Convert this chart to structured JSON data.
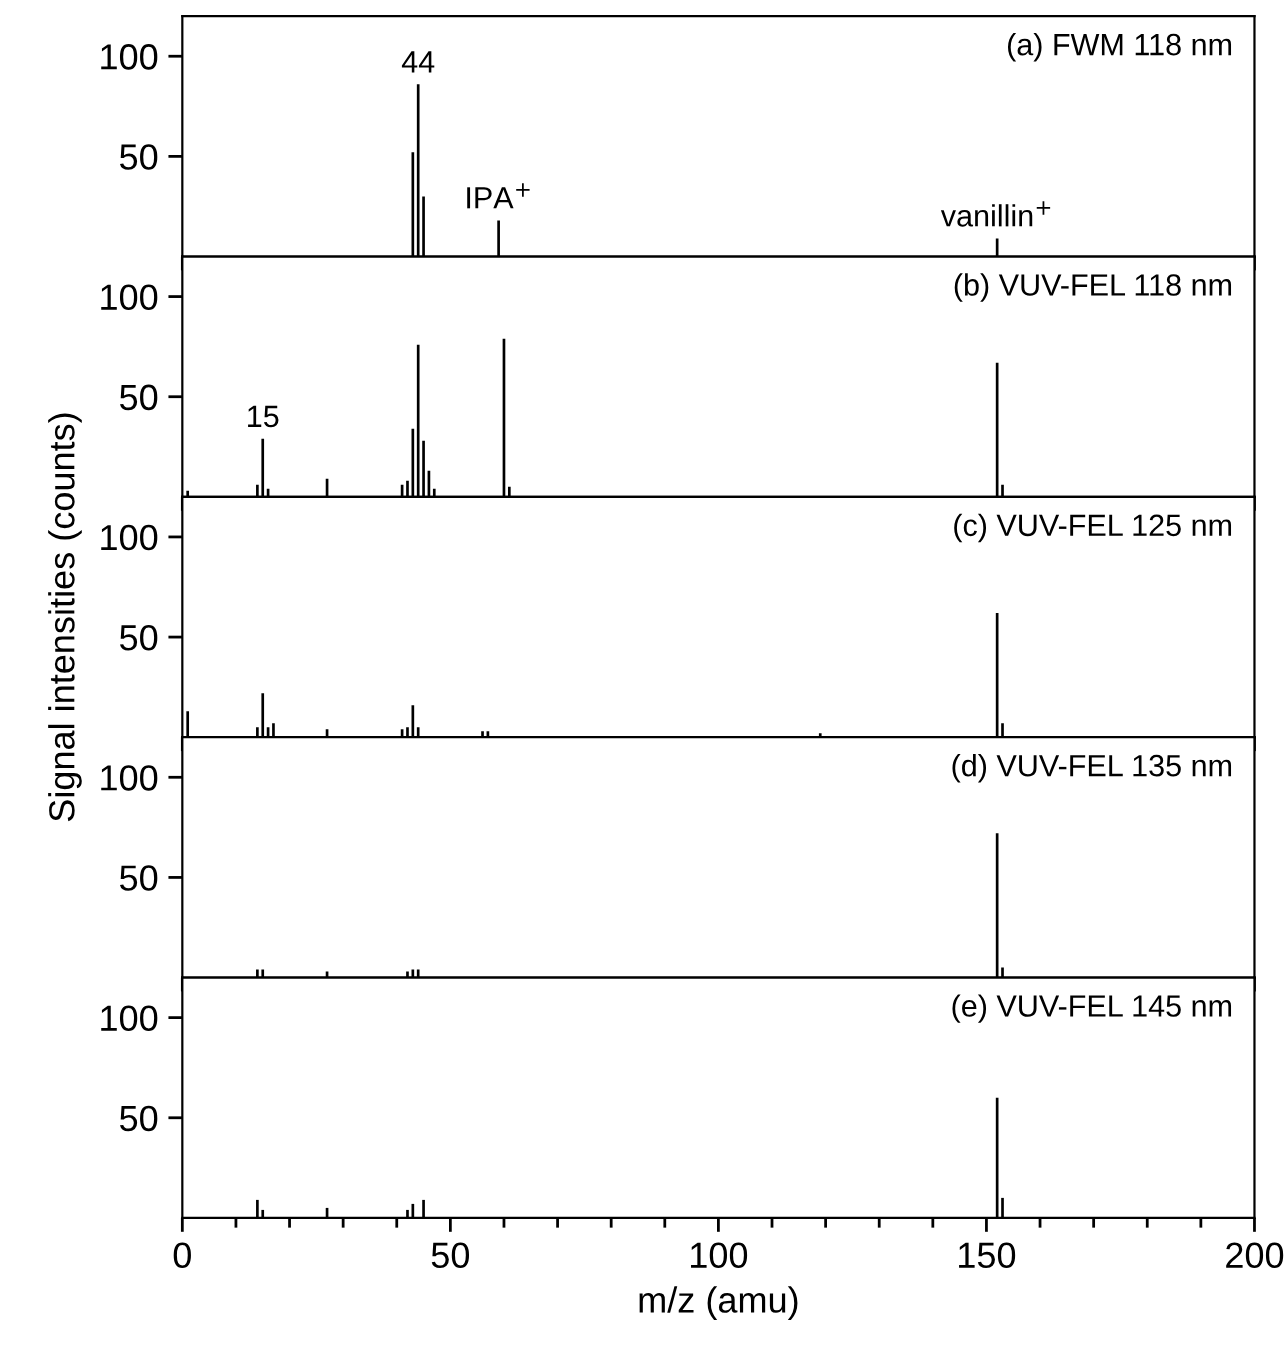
{
  "chart_data": [
    {
      "type": "bar",
      "title": "(a) FWM 118 nm",
      "x": [
        43,
        44,
        45,
        59,
        152
      ],
      "values": [
        52,
        86,
        30,
        18,
        9
      ],
      "color": "#000000",
      "annotations": [
        {
          "text": "44",
          "x": 44,
          "y": 86
        },
        {
          "text": "IPA$^{+}$",
          "x": 59,
          "y": 18
        },
        {
          "text": "vanillin$^{+}$",
          "x": 152,
          "y": 9
        }
      ],
      "xlim": [
        0,
        200
      ],
      "ylim": [
        0,
        120
      ],
      "yticks": [
        50,
        100
      ],
      "tick_labels": "y",
      "grid": false,
      "legend": false
    },
    {
      "type": "bar",
      "title": "(b) VUV-FEL 118 nm",
      "x": [
        1,
        14,
        15,
        16,
        27,
        41,
        42,
        43,
        44,
        45,
        46,
        47,
        60,
        61,
        152,
        153
      ],
      "values": [
        3,
        6,
        29,
        4,
        9,
        6,
        8,
        34,
        76,
        28,
        13,
        4,
        79,
        5,
        67,
        6
      ],
      "color": "#000000",
      "annotations": [
        {
          "text": "15",
          "x": 15,
          "y": 29
        }
      ],
      "xlim": [
        0,
        200
      ],
      "ylim": [
        0,
        120
      ],
      "yticks": [
        50,
        100
      ],
      "tick_labels": "y",
      "grid": false,
      "legend": false
    },
    {
      "type": "bar",
      "title": "(c) VUV-FEL 125 nm",
      "ylabel": "Signal intensities (counts)",
      "x": [
        1,
        14,
        15,
        16,
        17,
        27,
        41,
        42,
        43,
        44,
        56,
        57,
        119,
        152,
        153
      ],
      "values": [
        13,
        5,
        22,
        5,
        7,
        4,
        4,
        5,
        16,
        5,
        3,
        3,
        2,
        62,
        7
      ],
      "color": "#000000",
      "xlim": [
        0,
        200
      ],
      "ylim": [
        0,
        120
      ],
      "yticks": [
        50,
        100
      ],
      "tick_labels": "y",
      "grid": false,
      "legend": false
    },
    {
      "type": "bar",
      "title": "(d) VUV-FEL 135 nm",
      "x": [
        14,
        15,
        27,
        42,
        43,
        44,
        152,
        153
      ],
      "values": [
        4,
        4,
        3,
        3,
        4,
        4,
        72,
        5
      ],
      "color": "#000000",
      "xlim": [
        0,
        200
      ],
      "ylim": [
        0,
        120
      ],
      "yticks": [
        50,
        100
      ],
      "tick_labels": "y",
      "grid": false,
      "legend": false
    },
    {
      "type": "bar",
      "title": "(e) VUV-FEL 145 nm",
      "xlabel": "m/z (amu)",
      "x": [
        14,
        15,
        27,
        42,
        43,
        45,
        152,
        153
      ],
      "values": [
        9,
        4,
        5,
        4,
        7,
        9,
        60,
        10
      ],
      "color": "#000000",
      "xlim": [
        0,
        200
      ],
      "xticks": [
        0,
        {
          "value": 10,
          "label": null
        },
        {
          "value": 20,
          "label": null
        },
        {
          "value": 30,
          "label": null
        },
        {
          "value": 40,
          "label": null
        },
        50,
        {
          "value": 60,
          "label": null
        },
        {
          "value": 70,
          "label": null
        },
        {
          "value": 80,
          "label": null
        },
        {
          "value": 90,
          "label": null
        },
        100,
        {
          "value": 110,
          "label": null
        },
        {
          "value": 120,
          "label": null
        },
        {
          "value": 130,
          "label": null
        },
        {
          "value": 140,
          "label": null
        },
        150,
        {
          "value": 160,
          "label": null
        },
        {
          "value": 170,
          "label": null
        },
        {
          "value": 180,
          "label": null
        },
        {
          "value": 190,
          "label": null
        },
        200
      ],
      "ylim": [
        0,
        120
      ],
      "yticks": [
        50,
        100
      ],
      "grid": false,
      "legend": false
    }
  ]
}
